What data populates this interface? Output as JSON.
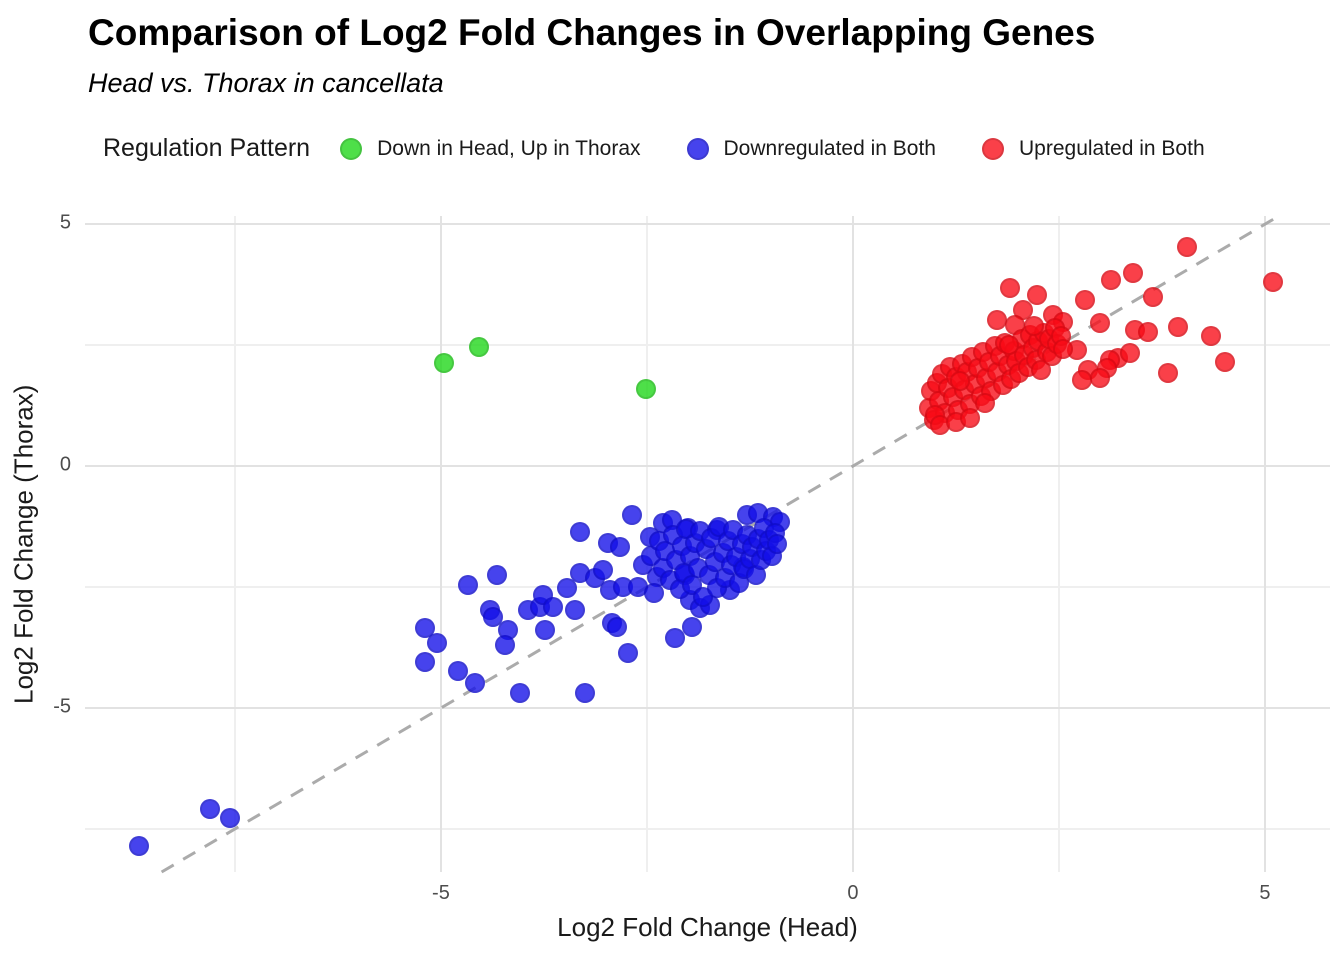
{
  "header": {
    "title": "Comparison of Log2 Fold Changes in Overlapping Genes",
    "subtitle": "Head vs. Thorax in cancellata"
  },
  "legend": {
    "title": "Regulation Pattern",
    "items": [
      {
        "label": "Down in Head, Up in Thorax",
        "color": "rgba(28,214,22,0.78)"
      },
      {
        "label": "Downregulated in Both",
        "color": "rgba(18,14,232,0.78)"
      },
      {
        "label": "Upregulated in Both",
        "color": "rgba(248,10,22,0.78)"
      }
    ]
  },
  "chart_data": {
    "type": "scatter",
    "title": "Comparison of Log2 Fold Changes in Overlapping Genes",
    "subtitle": "Head vs. Thorax in cancellata",
    "xlabel": "Log2 Fold Change (Head)",
    "ylabel": "Log2 Fold Change (Thorax)",
    "xlim": [
      -9.32,
      5.79
    ],
    "ylim": [
      -8.39,
      5.17
    ],
    "x_major_ticks": [
      -5,
      0,
      5
    ],
    "y_major_ticks": [
      5,
      0,
      -5
    ],
    "x_minor_gridlines": [
      -7.5,
      -2.5,
      2.5
    ],
    "y_minor_gridlines": [
      2.5,
      -2.5,
      -7.5
    ],
    "grid": true,
    "legend_position": "top",
    "identity_line": {
      "equation": "y = x",
      "style": "dashed",
      "color": "#ababab"
    },
    "series": [
      {
        "name": "Down in Head, Up in Thorax",
        "color": "rgba(28,214,22,0.78)",
        "points": [
          [
            -4.96,
            2.13
          ],
          [
            -4.54,
            2.46
          ],
          [
            -2.51,
            1.59
          ]
        ]
      },
      {
        "name": "Downregulated in Both",
        "color": "rgba(18,14,232,0.78)",
        "points": [
          [
            -8.67,
            -7.85
          ],
          [
            -7.8,
            -7.09
          ],
          [
            -7.56,
            -7.27
          ],
          [
            -5.19,
            -3.35
          ],
          [
            -5.05,
            -3.66
          ],
          [
            -5.19,
            -4.05
          ],
          [
            -4.79,
            -4.24
          ],
          [
            -4.59,
            -4.48
          ],
          [
            -4.67,
            -2.46
          ],
          [
            -4.32,
            -2.25
          ],
          [
            -4.4,
            -2.98
          ],
          [
            -4.37,
            -3.12
          ],
          [
            -4.19,
            -3.39
          ],
          [
            -4.22,
            -3.7
          ],
          [
            -4.04,
            -4.69
          ],
          [
            -3.94,
            -2.98
          ],
          [
            -3.8,
            -2.91
          ],
          [
            -3.76,
            -2.67
          ],
          [
            -3.74,
            -3.39
          ],
          [
            -3.64,
            -2.91
          ],
          [
            -3.47,
            -2.52
          ],
          [
            -3.37,
            -2.98
          ],
          [
            -3.31,
            -1.36
          ],
          [
            -3.25,
            -4.69
          ],
          [
            -3.31,
            -2.21
          ],
          [
            -3.13,
            -2.31
          ],
          [
            -3.03,
            -2.15
          ],
          [
            -2.97,
            -1.59
          ],
          [
            -2.95,
            -2.56
          ],
          [
            -2.83,
            -1.67
          ],
          [
            -2.79,
            -2.5
          ],
          [
            -2.92,
            -3.24
          ],
          [
            -2.86,
            -3.33
          ],
          [
            -2.73,
            -3.86
          ],
          [
            -2.68,
            -1.01
          ],
          [
            -2.61,
            -2.5
          ],
          [
            -2.46,
            -1.47
          ],
          [
            -2.38,
            -2.29
          ],
          [
            -2.31,
            -1.18
          ],
          [
            -2.2,
            -1.12
          ],
          [
            -2.0,
            -1.28
          ],
          [
            -1.65,
            -1.32
          ],
          [
            -1.29,
            -1.01
          ],
          [
            -1.15,
            -0.97
          ],
          [
            -0.97,
            -1.05
          ],
          [
            -1.98,
            -2.77
          ],
          [
            -1.86,
            -2.93
          ],
          [
            -1.74,
            -2.87
          ],
          [
            -1.49,
            -2.56
          ],
          [
            -2.04,
            -2.25
          ],
          [
            -1.33,
            -2.09
          ],
          [
            -0.89,
            -1.15
          ],
          [
            -1.95,
            -3.33
          ],
          [
            -2.16,
            -3.55
          ],
          [
            -2.55,
            -2.05
          ],
          [
            -2.45,
            -1.85
          ],
          [
            -2.42,
            -2.62
          ],
          [
            -2.35,
            -1.55
          ],
          [
            -2.3,
            -2.1
          ],
          [
            -2.28,
            -1.75
          ],
          [
            -2.22,
            -2.35
          ],
          [
            -2.18,
            -1.42
          ],
          [
            -2.15,
            -1.95
          ],
          [
            -2.1,
            -2.55
          ],
          [
            -2.08,
            -1.65
          ],
          [
            -2.05,
            -2.2
          ],
          [
            -2.02,
            -1.3
          ],
          [
            -1.98,
            -1.85
          ],
          [
            -1.95,
            -2.45
          ],
          [
            -1.92,
            -1.58
          ],
          [
            -1.88,
            -2.1
          ],
          [
            -1.85,
            -1.35
          ],
          [
            -1.82,
            -2.7
          ],
          [
            -1.78,
            -1.72
          ],
          [
            -1.75,
            -2.25
          ],
          [
            -1.72,
            -1.48
          ],
          [
            -1.68,
            -1.98
          ],
          [
            -1.65,
            -2.52
          ],
          [
            -1.62,
            -1.25
          ],
          [
            -1.58,
            -1.8
          ],
          [
            -1.55,
            -2.32
          ],
          [
            -1.52,
            -1.55
          ],
          [
            -1.48,
            -2.05
          ],
          [
            -1.45,
            -1.32
          ],
          [
            -1.42,
            -1.88
          ],
          [
            -1.38,
            -2.42
          ],
          [
            -1.35,
            -1.62
          ],
          [
            -1.32,
            -2.12
          ],
          [
            -1.28,
            -1.42
          ],
          [
            -1.25,
            -1.92
          ],
          [
            -1.22,
            -1.68
          ],
          [
            -1.18,
            -2.25
          ],
          [
            -1.15,
            -1.5
          ],
          [
            -1.12,
            -1.95
          ],
          [
            -1.08,
            -1.28
          ],
          [
            -1.05,
            -1.75
          ],
          [
            -1.02,
            -1.52
          ],
          [
            -0.98,
            -1.85
          ],
          [
            -0.95,
            -1.38
          ],
          [
            -0.92,
            -1.62
          ]
        ]
      },
      {
        "name": "Upregulated in Both",
        "color": "rgba(248,10,22,0.78)",
        "points": [
          [
            4.05,
            4.52
          ],
          [
            5.1,
            3.8
          ],
          [
            3.4,
            3.99
          ],
          [
            3.13,
            3.84
          ],
          [
            3.64,
            3.49
          ],
          [
            1.91,
            3.68
          ],
          [
            2.23,
            3.53
          ],
          [
            2.82,
            3.43
          ],
          [
            2.06,
            3.22
          ],
          [
            2.43,
            3.12
          ],
          [
            2.55,
            2.98
          ],
          [
            1.75,
            3.02
          ],
          [
            1.97,
            2.91
          ],
          [
            3.94,
            2.87
          ],
          [
            3.42,
            2.81
          ],
          [
            3.58,
            2.77
          ],
          [
            4.34,
            2.69
          ],
          [
            4.51,
            2.15
          ],
          [
            3.82,
            1.92
          ],
          [
            3.22,
            2.23
          ],
          [
            3.12,
            2.19
          ],
          [
            2.85,
            1.98
          ],
          [
            3.08,
            2.02
          ],
          [
            2.72,
            2.4
          ],
          [
            2.78,
            1.78
          ],
          [
            3.0,
            1.82
          ],
          [
            3.0,
            2.95
          ],
          [
            3.36,
            2.33
          ],
          [
            0.92,
            1.2
          ],
          [
            0.95,
            1.55
          ],
          [
            0.98,
            0.95
          ],
          [
            1.02,
            1.72
          ],
          [
            1.05,
            1.35
          ],
          [
            1.08,
            1.9
          ],
          [
            1.12,
            1.1
          ],
          [
            1.15,
            1.62
          ],
          [
            1.18,
            2.05
          ],
          [
            1.22,
            1.42
          ],
          [
            1.25,
            1.85
          ],
          [
            1.28,
            1.15
          ],
          [
            1.32,
            2.12
          ],
          [
            1.35,
            1.58
          ],
          [
            1.38,
            1.95
          ],
          [
            1.42,
            1.28
          ],
          [
            1.45,
            2.25
          ],
          [
            1.48,
            1.7
          ],
          [
            1.52,
            2.02
          ],
          [
            1.55,
            1.45
          ],
          [
            1.58,
            2.35
          ],
          [
            1.62,
            1.82
          ],
          [
            1.65,
            2.15
          ],
          [
            1.68,
            1.55
          ],
          [
            1.72,
            2.48
          ],
          [
            1.75,
            1.95
          ],
          [
            1.78,
            2.28
          ],
          [
            1.82,
            1.68
          ],
          [
            1.85,
            2.55
          ],
          [
            1.88,
            2.08
          ],
          [
            1.92,
            1.8
          ],
          [
            1.95,
            2.38
          ],
          [
            1.98,
            2.18
          ],
          [
            2.02,
            1.92
          ],
          [
            2.05,
            2.62
          ],
          [
            2.08,
            2.3
          ],
          [
            2.12,
            2.05
          ],
          [
            2.15,
            2.72
          ],
          [
            2.18,
            2.45
          ],
          [
            2.22,
            2.2
          ],
          [
            2.25,
            2.58
          ],
          [
            2.28,
            1.98
          ],
          [
            2.32,
            2.75
          ],
          [
            2.35,
            2.35
          ],
          [
            2.38,
            2.62
          ],
          [
            2.42,
            2.28
          ],
          [
            2.45,
            2.85
          ],
          [
            2.48,
            2.52
          ],
          [
            2.52,
            2.68
          ],
          [
            2.55,
            2.42
          ],
          [
            1.0,
            1.05
          ],
          [
            1.3,
            1.75
          ],
          [
            1.6,
            1.3
          ],
          [
            1.9,
            2.5
          ],
          [
            2.2,
            2.9
          ],
          [
            1.06,
            0.85
          ],
          [
            1.25,
            0.92
          ],
          [
            1.42,
            1.0
          ]
        ]
      }
    ]
  }
}
